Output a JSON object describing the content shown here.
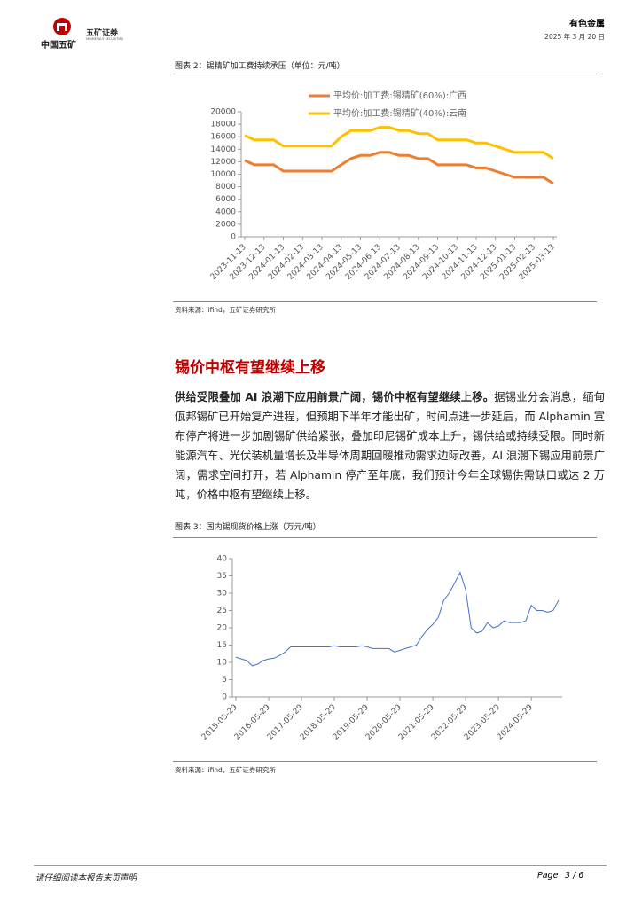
{
  "header": {
    "logo_name": "中国五矿",
    "brand": "五矿证券",
    "brand_en": "MINMETALS SECURITIES",
    "sector": "有色金属",
    "date": "2025 年 3 月 20 日"
  },
  "chart_data": [
    {
      "type": "line",
      "title": "图表 2：锡精矿加工费持续承压（单位：元/吨）",
      "source": "资料来源：ifind，五矿证券研究所",
      "legend": "top",
      "categories": [
        "2023-11-13",
        null,
        "2023-12-13",
        null,
        "2024-01-13",
        null,
        "2024-02-13",
        null,
        "2024-03-13",
        null,
        "2024-04-13",
        null,
        "2024-05-13",
        null,
        "2024-06-13",
        null,
        "2024-07-13",
        null,
        "2024-08-13",
        null,
        "2024-09-13",
        null,
        "2024-10-13",
        null,
        "2024-11-13",
        null,
        "2024-12-13",
        null,
        "2025-01-13",
        null,
        "2025-02-13",
        null,
        "2025-03-13"
      ],
      "series": [
        {
          "name": "平均价:加工费:锡精矿(60%):广西",
          "color": "#ED7D31",
          "values": [
            12200,
            11500,
            11500,
            11500,
            10500,
            10500,
            10500,
            10500,
            10500,
            10500,
            11500,
            12500,
            13000,
            13000,
            13500,
            13500,
            13000,
            13000,
            12500,
            12500,
            11500,
            11500,
            11500,
            11500,
            11000,
            11000,
            10500,
            10000,
            9500,
            9500,
            9500,
            9500,
            8500
          ]
        },
        {
          "name": "平均价:加工费:锡精矿(40%):云南",
          "color": "#FFC000",
          "values": [
            16200,
            15500,
            15500,
            15500,
            14500,
            14500,
            14500,
            14500,
            14500,
            14500,
            16000,
            17000,
            17000,
            17000,
            17500,
            17500,
            17000,
            17000,
            16500,
            16500,
            15500,
            15500,
            15500,
            15500,
            15000,
            15000,
            14500,
            14000,
            13500,
            13500,
            13500,
            13500,
            12500
          ]
        }
      ],
      "ylim": [
        0,
        20000
      ],
      "yticks": [
        0,
        2000,
        4000,
        6000,
        8000,
        10000,
        12000,
        14000,
        16000,
        18000,
        20000
      ]
    },
    {
      "type": "line",
      "title": "图表 3：国内锡现货价格上涨（万元/吨）",
      "source": "资料来源：ifind，五矿证券研究所",
      "categories": [
        "2015-05-29",
        null,
        null,
        null,
        null,
        null,
        "2016-05-29",
        null,
        null,
        null,
        null,
        null,
        "2017-05-29",
        null,
        null,
        null,
        null,
        null,
        "2018-05-29",
        null,
        null,
        null,
        null,
        null,
        "2019-05-29",
        null,
        null,
        null,
        null,
        null,
        "2020-05-29",
        null,
        null,
        null,
        null,
        null,
        "2021-05-29",
        null,
        null,
        null,
        null,
        null,
        "2022-05-29",
        null,
        null,
        null,
        null,
        null,
        "2023-05-29",
        null,
        null,
        null,
        null,
        null,
        "2024-05-29",
        null,
        null,
        null,
        null,
        null
      ],
      "series": [
        {
          "color": "#4472C4",
          "values": [
            11.5,
            11,
            10.5,
            9,
            9.5,
            10.5,
            11,
            11.2,
            12,
            13,
            14.5,
            14.5,
            14.5,
            14.5,
            14.5,
            14.5,
            14.5,
            14.5,
            14.8,
            14.5,
            14.5,
            14.5,
            14.5,
            14.8,
            14.5,
            14,
            14,
            14,
            14,
            13,
            13.5,
            14,
            14.5,
            15,
            17.5,
            19.5,
            21,
            23,
            28,
            30,
            33,
            36,
            31,
            20,
            18.5,
            19,
            21.5,
            20,
            20.5,
            22,
            21.5,
            21.5,
            21.5,
            22,
            26.5,
            25,
            25,
            24.5,
            25,
            28
          ]
        }
      ],
      "ylim": [
        0,
        40
      ],
      "yticks": [
        0,
        5,
        10,
        15,
        20,
        25,
        30,
        35,
        40
      ]
    }
  ],
  "section": {
    "heading": "锡价中枢有望继续上移",
    "lead": "供给受限叠加 AI 浪潮下应用前景广阔，锡价中枢有望继续上移。",
    "body": "据锡业分会消息，缅甸佤邦锡矿已开始复产进程，但预期下半年才能出矿，时间点进一步延后，而 Alphamin 宣布停产将进一步加剧锡矿供给紧张，叠加印尼锡矿成本上升，锡供给或持续受限。同时新能源汽车、光伏装机量增长及半导体周期回暖推动需求边际改善，AI 浪潮下锡应用前景广阔，需求空间打开，若 Alphamin 停产至年底，我们预计今年全球锡供需缺口或达 2 万吨，价格中枢有望继续上移。"
  },
  "footer": {
    "notice": "请仔细阅读本报告末页声明",
    "page": "Page",
    "page_number": "3 / 6"
  }
}
